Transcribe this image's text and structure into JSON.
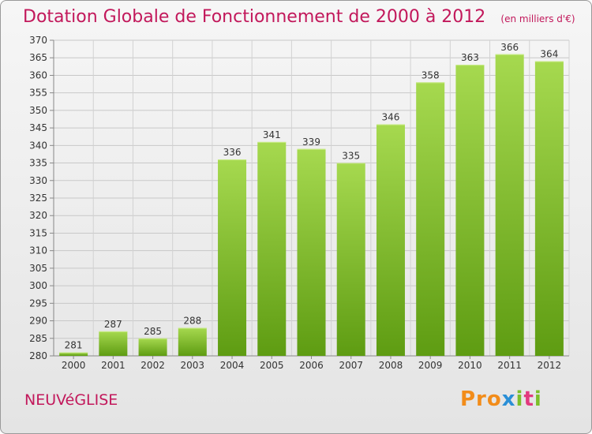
{
  "title": "Dotation Globale de Fonctionnement de 2000 à 2012",
  "unit": "(en milliers d'€)",
  "commune": "NEUVéGLISE",
  "logo": {
    "p1": "Pro",
    "p2": "x",
    "p3": "i",
    "p4": "t",
    "p5": "i"
  },
  "colors": {
    "accent": "#c2185b",
    "bar_top": "#a6d94f",
    "bar_bottom": "#5e9c12"
  },
  "chart_data": {
    "type": "bar",
    "categories": [
      "2000",
      "2001",
      "2002",
      "2003",
      "2004",
      "2005",
      "2006",
      "2007",
      "2008",
      "2009",
      "2010",
      "2011",
      "2012"
    ],
    "values": [
      281,
      287,
      285,
      288,
      336,
      341,
      339,
      335,
      346,
      358,
      363,
      366,
      364
    ],
    "title": "Dotation Globale de Fonctionnement de 2000 à 2012",
    "ylim": [
      280,
      370
    ],
    "yticks": [
      280,
      285,
      290,
      295,
      300,
      305,
      310,
      315,
      320,
      325,
      330,
      335,
      340,
      345,
      350,
      355,
      360,
      365,
      370
    ],
    "grid": true,
    "data_labels": true
  }
}
